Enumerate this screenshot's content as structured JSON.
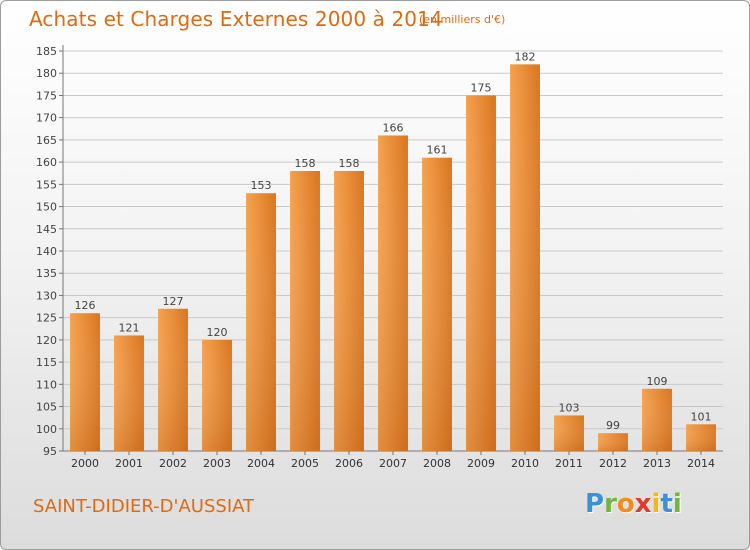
{
  "header": {
    "title": "Achats et Charges Externes 2000 à 2014",
    "subtitle": "(en milliers d'€)"
  },
  "footer": {
    "commune": "SAINT-DIDIER-D'AUSSIAT",
    "logo_text": "Proxiti"
  },
  "colors": {
    "bar_light": "#f5a24f",
    "bar_dark": "#d9751f",
    "title": "#e06a10"
  },
  "chart_data": {
    "type": "bar",
    "title": "Achats et Charges Externes 2000 à 2014",
    "subtitle": "(en milliers d'€)",
    "xlabel": "",
    "ylabel": "",
    "categories": [
      "2000",
      "2001",
      "2002",
      "2003",
      "2004",
      "2005",
      "2006",
      "2007",
      "2008",
      "2009",
      "2010",
      "2011",
      "2012",
      "2013",
      "2014"
    ],
    "values": [
      126,
      121,
      127,
      120,
      153,
      158,
      158,
      166,
      161,
      175,
      182,
      103,
      99,
      109,
      101
    ],
    "ylim": [
      95,
      185
    ],
    "yticks": [
      95,
      100,
      105,
      110,
      115,
      120,
      125,
      130,
      135,
      140,
      145,
      150,
      155,
      160,
      165,
      170,
      175,
      180,
      185
    ],
    "grid": true,
    "legend": "none"
  }
}
